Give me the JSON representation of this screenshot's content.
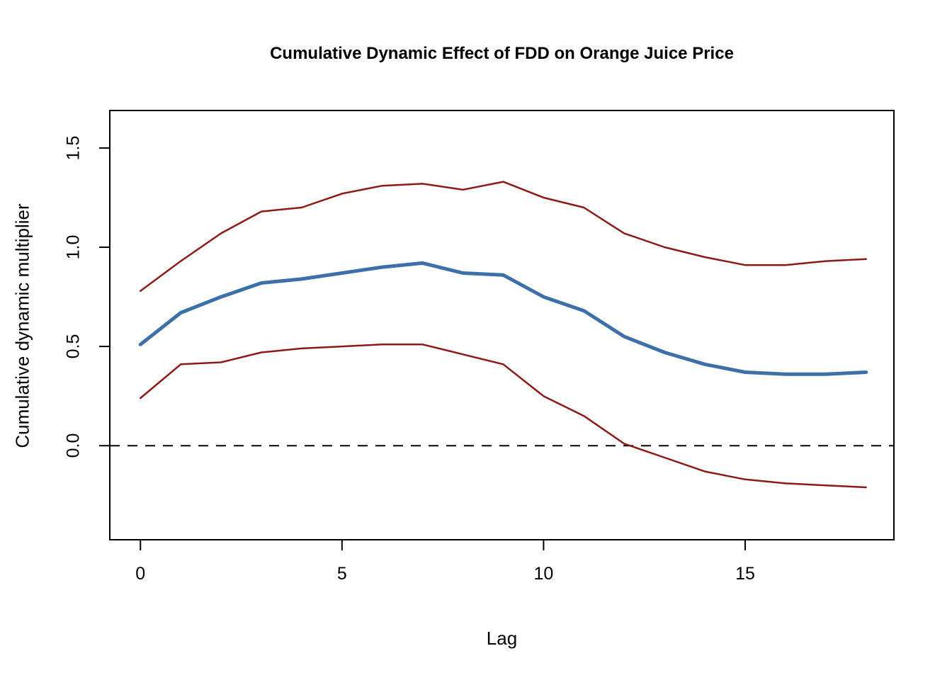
{
  "chart_data": {
    "type": "line",
    "title": "Cumulative Dynamic Effect of FDD on Orange Juice Price",
    "xlabel": "Lag",
    "ylabel": "Cumulative dynamic multiplier",
    "x": [
      0,
      1,
      2,
      3,
      4,
      5,
      6,
      7,
      8,
      9,
      10,
      11,
      12,
      13,
      14,
      15,
      16,
      17,
      18
    ],
    "series": [
      {
        "name": "upper-confidence-band",
        "color": "#8b1a1a",
        "width": 2.5,
        "values": [
          0.78,
          0.93,
          1.07,
          1.18,
          1.2,
          1.27,
          1.31,
          1.32,
          1.29,
          1.33,
          1.25,
          1.2,
          1.07,
          1.0,
          0.95,
          0.91,
          0.91,
          0.93,
          0.94
        ]
      },
      {
        "name": "cumulative-multiplier-estimate",
        "color": "#3d6fa8",
        "width": 5,
        "values": [
          0.51,
          0.67,
          0.75,
          0.82,
          0.84,
          0.87,
          0.9,
          0.92,
          0.87,
          0.86,
          0.75,
          0.68,
          0.55,
          0.47,
          0.41,
          0.37,
          0.36,
          0.36,
          0.37
        ]
      },
      {
        "name": "lower-confidence-band",
        "color": "#8b1a1a",
        "width": 2.5,
        "values": [
          0.24,
          0.41,
          0.42,
          0.47,
          0.49,
          0.5,
          0.51,
          0.51,
          0.46,
          0.41,
          0.25,
          0.15,
          0.01,
          -0.06,
          -0.13,
          -0.17,
          -0.19,
          -0.2,
          -0.21
        ]
      }
    ],
    "reference_line": {
      "y": 0,
      "style": "dashed",
      "color": "#000000"
    },
    "x_ticks": [
      0,
      5,
      10,
      15
    ],
    "x_tick_labels": [
      "0",
      "5",
      "10",
      "15"
    ],
    "y_ticks": [
      0.0,
      0.5,
      1.0,
      1.5
    ],
    "y_tick_labels": [
      "0.0",
      "0.5",
      "1.0",
      "1.5"
    ],
    "xlim": [
      -0.76,
      18.69
    ],
    "ylim": [
      -0.474,
      1.689
    ],
    "grid": false,
    "legend": "none"
  },
  "colors": {
    "background": "#ffffff",
    "axis": "#000000",
    "text": "#000000"
  }
}
